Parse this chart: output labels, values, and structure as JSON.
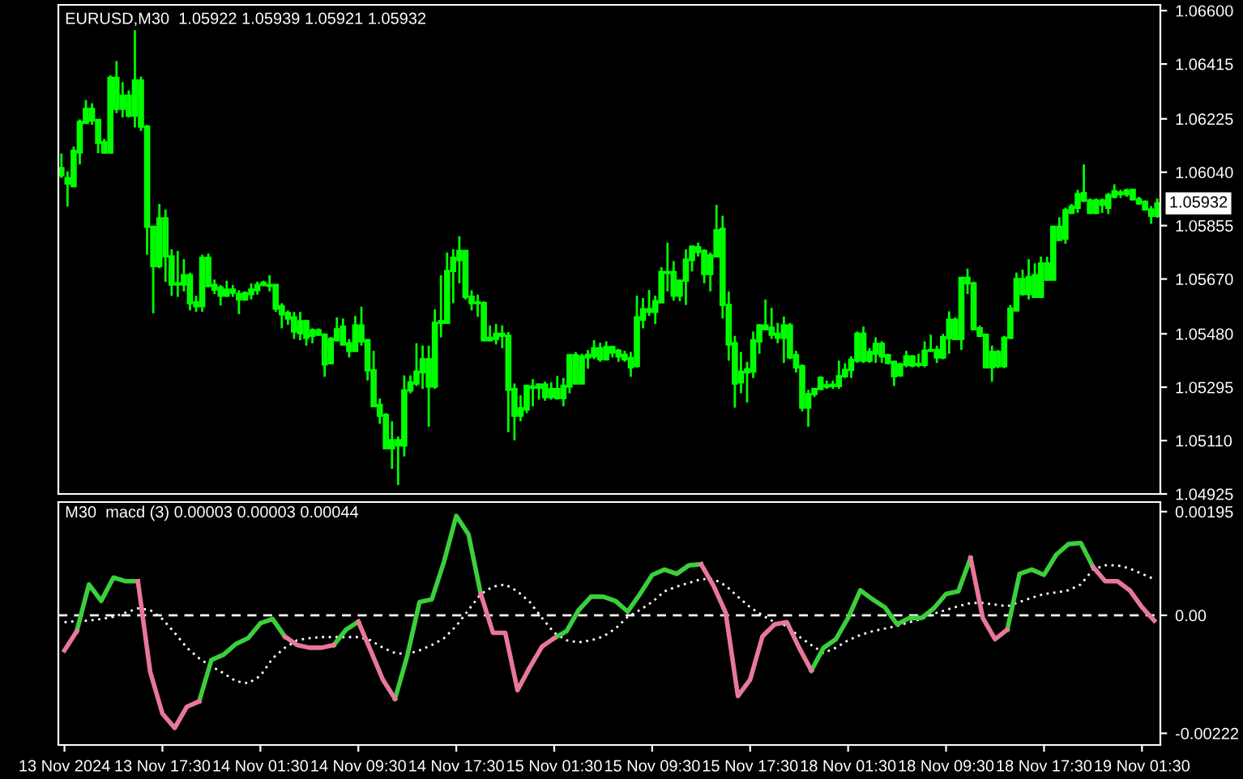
{
  "chart_data": [
    {
      "type": "candlestick",
      "title": "EURUSD,M30  1.05922 1.05939 1.05921 1.05932",
      "color": "#00ff00",
      "tick_labels": "y",
      "categories": [
        null,
        null,
        null,
        null,
        null,
        null,
        null,
        null,
        null,
        null,
        null,
        null,
        null,
        null,
        null,
        null,
        null,
        null,
        null,
        null,
        null,
        null,
        null,
        null,
        null,
        null,
        null,
        null,
        null,
        null,
        null,
        null,
        null,
        null,
        null,
        null,
        null,
        null,
        null,
        null,
        null,
        null,
        null,
        null,
        null,
        null,
        null,
        null,
        null,
        null,
        null,
        null,
        null,
        null,
        null,
        null,
        null,
        null,
        null,
        null,
        null,
        null,
        null,
        null,
        null,
        null,
        null,
        null,
        null,
        null,
        null,
        null,
        null,
        null,
        null,
        null,
        null,
        null,
        null,
        null,
        null,
        null,
        null,
        null,
        null,
        null,
        null,
        null,
        null,
        null,
        null,
        null,
        null,
        null,
        null,
        null,
        null,
        null,
        null,
        null,
        null,
        null,
        null,
        null,
        null,
        null,
        null,
        null,
        null,
        null,
        null,
        null,
        null,
        null,
        null,
        null,
        null,
        null,
        null,
        null,
        null,
        null,
        null,
        null,
        null,
        null,
        null,
        null,
        null,
        null,
        null,
        null,
        null,
        null,
        null,
        null,
        null,
        null,
        null,
        null,
        null,
        null,
        null,
        null,
        null,
        null,
        null,
        null,
        null,
        null,
        null,
        null,
        null,
        null,
        null,
        null,
        null,
        null,
        null,
        null,
        null,
        null,
        null,
        null,
        null,
        null,
        null,
        null,
        null,
        null,
        null,
        null,
        null,
        null,
        null,
        null,
        null,
        null,
        null,
        null
      ],
      "ohlc": [
        [
          1.0603,
          1.06105,
          1.0602,
          1.06054
        ],
        [
          1.0602,
          1.06043,
          1.05921,
          1.06001
        ],
        [
          1.05992,
          1.06129,
          1.05988,
          1.06114
        ],
        [
          1.06108,
          1.06223,
          1.06067,
          1.06215
        ],
        [
          1.06211,
          1.0629,
          1.06208,
          1.0626
        ],
        [
          1.0626,
          1.06279,
          1.06204,
          1.06219
        ],
        [
          1.06221,
          1.06223,
          1.06106,
          1.06142
        ],
        [
          1.06144,
          1.06155,
          1.06105,
          1.06108
        ],
        [
          1.06108,
          1.06376,
          1.06105,
          1.06367
        ],
        [
          1.06367,
          1.06425,
          1.06245,
          1.0626
        ],
        [
          1.0626,
          1.06352,
          1.0623,
          1.06305
        ],
        [
          1.06305,
          1.06324,
          1.0623,
          1.06236
        ],
        [
          1.06236,
          1.06532,
          1.06195,
          1.06358
        ],
        [
          1.06358,
          1.06371,
          1.06183,
          1.06198
        ],
        [
          1.06198,
          1.06204,
          1.05754,
          1.05851
        ],
        [
          1.05851,
          1.05851,
          1.05551,
          1.05715
        ],
        [
          1.05715,
          1.0593,
          1.05707,
          1.0588
        ],
        [
          1.0588,
          1.05911,
          1.0566,
          1.05748
        ],
        [
          1.05748,
          1.05773,
          1.05612,
          1.05651
        ],
        [
          1.05651,
          1.05767,
          1.05608,
          1.05655
        ],
        [
          1.05651,
          1.05739,
          1.05627,
          1.05683
        ],
        [
          1.05683,
          1.05692,
          1.05561,
          1.05586
        ],
        [
          1.05589,
          1.05612,
          1.05556,
          1.05576
        ],
        [
          1.05576,
          1.05754,
          1.05556,
          1.05743
        ],
        [
          1.05743,
          1.05758,
          1.05642,
          1.05646
        ],
        [
          1.05649,
          1.05668,
          1.05618,
          1.05633
        ],
        [
          1.0564,
          1.05649,
          1.05578,
          1.05612
        ],
        [
          1.05612,
          1.05664,
          1.05608,
          1.05633
        ],
        [
          1.05633,
          1.05649,
          1.05608,
          1.05623
        ],
        [
          1.05618,
          1.05631,
          1.05548,
          1.05599
        ],
        [
          1.05599,
          1.05627,
          1.05595,
          1.05621
        ],
        [
          1.05618,
          1.05655,
          1.05599,
          1.05633
        ],
        [
          1.05631,
          1.05661,
          1.05616,
          1.05649
        ],
        [
          1.05649,
          1.05664,
          1.05646,
          1.05657
        ],
        [
          1.05649,
          1.05683,
          1.05627,
          1.05646
        ],
        [
          1.05649,
          1.05649,
          1.05556,
          1.05567
        ],
        [
          1.05576,
          1.05586,
          1.05499,
          1.05548
        ],
        [
          1.05552,
          1.05561,
          1.05511,
          1.05533
        ],
        [
          1.05537,
          1.05556,
          1.05462,
          1.05488
        ],
        [
          1.05482,
          1.05556,
          1.05458,
          1.05524
        ],
        [
          1.05524,
          1.05529,
          1.05439,
          1.05466
        ],
        [
          1.05473,
          1.05499,
          1.05447,
          1.05492
        ],
        [
          1.05492,
          1.05499,
          1.05473,
          1.05477
        ],
        [
          1.05477,
          1.05482,
          1.05331,
          1.05374
        ],
        [
          1.05378,
          1.05469,
          1.05378,
          1.05462
        ],
        [
          1.05458,
          1.05537,
          1.05454,
          1.05496
        ],
        [
          1.05443,
          1.05533,
          1.05439,
          1.05505
        ],
        [
          1.05447,
          1.05462,
          1.05398,
          1.05421
        ],
        [
          1.05421,
          1.05542,
          1.05421,
          1.05509
        ],
        [
          1.05509,
          1.05574,
          1.05439,
          1.05454
        ],
        [
          1.05458,
          1.05462,
          1.05318,
          1.05353
        ],
        [
          1.05353,
          1.05421,
          1.05229,
          1.05229
        ],
        [
          1.05233,
          1.05256,
          1.05168,
          1.05196
        ],
        [
          1.05199,
          1.05205,
          1.05083,
          1.05083
        ],
        [
          1.05083,
          1.05177,
          1.05012,
          1.05111
        ],
        [
          1.05093,
          1.05124,
          1.04956,
          1.05111
        ],
        [
          1.05093,
          1.05336,
          1.05055,
          1.05284
        ],
        [
          1.05284,
          1.05336,
          1.05274,
          1.05312
        ],
        [
          1.05308,
          1.05447,
          1.05299,
          1.05349
        ],
        [
          1.05346,
          1.05439,
          1.05289,
          1.05392
        ],
        [
          1.05392,
          1.05439,
          1.05158,
          1.05297
        ],
        [
          1.05297,
          1.05565,
          1.05289,
          1.05518
        ],
        [
          1.05518,
          1.05683,
          1.05468,
          1.05524
        ],
        [
          1.05518,
          1.05762,
          1.05518,
          1.05698
        ],
        [
          1.05698,
          1.05773,
          1.05586,
          1.05743
        ],
        [
          1.05736,
          1.05818,
          1.05655,
          1.05767
        ],
        [
          1.05767,
          1.05767,
          1.05599,
          1.05608
        ],
        [
          1.05608,
          1.05631,
          1.05561,
          1.05586
        ],
        [
          1.05586,
          1.05616,
          1.05539,
          1.05589
        ],
        [
          1.05586,
          1.05593,
          1.05454,
          1.05458
        ],
        [
          1.05458,
          1.05509,
          1.05454,
          1.05466
        ],
        [
          1.05462,
          1.05514,
          1.05443,
          1.0548
        ],
        [
          1.0548,
          1.05509,
          1.0543,
          1.05473
        ],
        [
          1.05473,
          1.05486,
          1.05139,
          1.05286
        ],
        [
          1.05289,
          1.05308,
          1.05111,
          1.05196
        ],
        [
          1.05196,
          1.05267,
          1.05177,
          1.05222
        ],
        [
          1.05218,
          1.05304,
          1.05205,
          1.05299
        ],
        [
          1.05293,
          1.05323,
          1.05229,
          1.05297
        ],
        [
          1.05293,
          1.05308,
          1.05252,
          1.05304
        ],
        [
          1.05304,
          1.05314,
          1.05248,
          1.05261
        ],
        [
          1.05261,
          1.05312,
          1.05252,
          1.05289
        ],
        [
          1.05289,
          1.05334,
          1.05252,
          1.05257
        ],
        [
          1.05257,
          1.05327,
          1.05229,
          1.053
        ],
        [
          1.05297,
          1.05409,
          1.05274,
          1.05406
        ],
        [
          1.05406,
          1.05417,
          1.05304,
          1.05308
        ],
        [
          1.05308,
          1.05411,
          1.05304,
          1.05402
        ],
        [
          1.05398,
          1.05424,
          1.05359,
          1.05407
        ],
        [
          1.05402,
          1.05458,
          1.05392,
          1.0543
        ],
        [
          1.0543,
          1.05449,
          1.05383,
          1.05392
        ],
        [
          1.05392,
          1.05454,
          1.05387,
          1.05434
        ],
        [
          1.05434,
          1.05439,
          1.05398,
          1.05415
        ],
        [
          1.05421,
          1.05428,
          1.05383,
          1.05402
        ],
        [
          1.05407,
          1.05421,
          1.05383,
          1.05392
        ],
        [
          1.05396,
          1.05417,
          1.05331,
          1.05364
        ],
        [
          1.05368,
          1.05612,
          1.05364,
          1.05537
        ],
        [
          1.05529,
          1.05604,
          1.05499,
          1.05565
        ],
        [
          1.05565,
          1.05632,
          1.05542,
          1.05556
        ],
        [
          1.05556,
          1.05612,
          1.05514,
          1.05593
        ],
        [
          1.05589,
          1.05711,
          1.05589,
          1.05694
        ],
        [
          1.05691,
          1.05796,
          1.05627,
          1.05694
        ],
        [
          1.05694,
          1.05732,
          1.05595,
          1.05612
        ],
        [
          1.05612,
          1.05668,
          1.05593,
          1.05664
        ],
        [
          1.05664,
          1.05773,
          1.0558,
          1.05737
        ],
        [
          1.05736,
          1.05786,
          1.05696,
          1.05782
        ],
        [
          1.0578,
          1.05796,
          1.05748,
          1.05764
        ],
        [
          1.05767,
          1.05773,
          1.05655,
          1.05687
        ],
        [
          1.05687,
          1.05762,
          1.05627,
          1.05752
        ],
        [
          1.05748,
          1.05927,
          1.05748,
          1.05839
        ],
        [
          1.05844,
          1.05889,
          1.05533,
          1.0558
        ],
        [
          1.0558,
          1.05627,
          1.05387,
          1.05443
        ],
        [
          1.05447,
          1.05473,
          1.05224,
          1.05308
        ],
        [
          1.05312,
          1.05417,
          1.05274,
          1.05349
        ],
        [
          1.05346,
          1.05383,
          1.05242,
          1.05357
        ],
        [
          1.05349,
          1.05488,
          1.05327,
          1.05458
        ],
        [
          1.05454,
          1.05514,
          1.05411,
          1.05509
        ],
        [
          1.05509,
          1.05599,
          1.05492,
          1.05496
        ],
        [
          1.05501,
          1.0557,
          1.05462,
          1.05477
        ],
        [
          1.0548,
          1.05518,
          1.05447,
          1.05466
        ],
        [
          1.05466,
          1.0554,
          1.05379,
          1.05509
        ],
        [
          1.05509,
          1.05518,
          1.05392,
          1.05398
        ],
        [
          1.05406,
          1.05421,
          1.05346,
          1.05364
        ],
        [
          1.05368,
          1.05374,
          1.05211,
          1.05224
        ],
        [
          1.05224,
          1.05286,
          1.05158,
          1.05271
        ],
        [
          1.05271,
          1.05293,
          1.05261,
          1.05289
        ],
        [
          1.05289,
          1.05333,
          1.05286,
          1.05327
        ],
        [
          1.05297,
          1.05318,
          1.05289,
          1.05302
        ],
        [
          1.05299,
          1.05318,
          1.05289,
          1.05304
        ],
        [
          1.05299,
          1.05387,
          1.05289,
          1.05333
        ],
        [
          1.05333,
          1.05378,
          1.05327,
          1.05355
        ],
        [
          1.05355,
          1.05402,
          1.05327,
          1.0539
        ],
        [
          1.05387,
          1.05488,
          1.05379,
          1.0548
        ],
        [
          1.0548,
          1.05505,
          1.05379,
          1.05387
        ],
        [
          1.05387,
          1.0543,
          1.05379,
          1.05417
        ],
        [
          1.05411,
          1.05468,
          1.05379,
          1.05445
        ],
        [
          1.05445,
          1.05454,
          1.05379,
          1.05402
        ],
        [
          1.05406,
          1.05411,
          1.05374,
          1.05379
        ],
        [
          1.05383,
          1.05387,
          1.05299,
          1.05333
        ],
        [
          1.05336,
          1.05379,
          1.05331,
          1.05374
        ],
        [
          1.05372,
          1.05421,
          1.05364,
          1.05402
        ],
        [
          1.05402,
          1.05406,
          1.05364,
          1.0537
        ],
        [
          1.05372,
          1.05411,
          1.05364,
          1.05376
        ],
        [
          1.05372,
          1.05454,
          1.05364,
          1.05421
        ],
        [
          1.05421,
          1.05477,
          1.05417,
          1.05424
        ],
        [
          1.05424,
          1.05439,
          1.05379,
          1.05398
        ],
        [
          1.05398,
          1.0548,
          1.05392,
          1.05468
        ],
        [
          1.05464,
          1.05558,
          1.05411,
          1.05529
        ],
        [
          1.05529,
          1.05537,
          1.05458,
          1.05462
        ],
        [
          1.05462,
          1.05674,
          1.05424,
          1.05674
        ],
        [
          1.05674,
          1.05706,
          1.05618,
          1.05655
        ],
        [
          1.05655,
          1.05661,
          1.05492,
          1.05496
        ],
        [
          1.05499,
          1.05509,
          1.05468,
          1.05473
        ],
        [
          1.05477,
          1.0548,
          1.05361,
          1.05364
        ],
        [
          1.05364,
          1.05439,
          1.05314,
          1.05417
        ],
        [
          1.05417,
          1.05424,
          1.05361,
          1.05368
        ],
        [
          1.05368,
          1.05473,
          1.05361,
          1.05466
        ],
        [
          1.05466,
          1.0558,
          1.05462,
          1.05567
        ],
        [
          1.05561,
          1.05692,
          1.05558,
          1.0567
        ],
        [
          1.0567,
          1.05702,
          1.05612,
          1.05618
        ],
        [
          1.05618,
          1.05739,
          1.05599,
          1.05677
        ],
        [
          1.05683,
          1.05724,
          1.05604,
          1.05608
        ],
        [
          1.05608,
          1.05748,
          1.05604,
          1.05724
        ],
        [
          1.05724,
          1.05747,
          1.05664,
          1.05668
        ],
        [
          1.05668,
          1.05855,
          1.05664,
          1.05851
        ],
        [
          1.05851,
          1.05884,
          1.05805,
          1.05805
        ],
        [
          1.0581,
          1.05917,
          1.05792,
          1.05908
        ],
        [
          1.05899,
          1.0593,
          1.05895,
          1.05921
        ],
        [
          1.05917,
          1.05979,
          1.05899,
          1.05964
        ],
        [
          1.05968,
          1.06067,
          1.05936,
          1.05942
        ],
        [
          1.05942,
          1.05949,
          1.05895,
          1.05899
        ],
        [
          1.05899,
          1.05949,
          1.05895,
          1.05942
        ],
        [
          1.05942,
          1.05949,
          1.05899,
          1.05927
        ],
        [
          1.05917,
          1.05968,
          1.05895,
          1.05961
        ],
        [
          1.05955,
          1.05998,
          1.05949,
          1.05974
        ],
        [
          1.0597,
          1.05979,
          1.05951,
          1.05964
        ],
        [
          1.05964,
          1.05983,
          1.05955,
          1.05977
        ],
        [
          1.05979,
          1.05983,
          1.05942,
          1.05946
        ],
        [
          1.05946,
          1.05955,
          1.05927,
          1.05932
        ],
        [
          1.05938,
          1.05942,
          1.05908,
          1.05911
        ],
        [
          1.05911,
          1.05923,
          1.05861,
          1.05889
        ],
        [
          1.05889,
          1.05949,
          1.05882,
          1.05932
        ]
      ],
      "ylim": [
        1.04925,
        1.0662
      ],
      "yticks": [
        {
          "value": 1.066,
          "label": "1.06600"
        },
        {
          "value": 1.06415,
          "label": "1.06415"
        },
        {
          "value": 1.06225,
          "label": "1.06225"
        },
        {
          "value": 1.0604,
          "label": "1.06040"
        },
        {
          "value": 1.05855,
          "label": "1.05855"
        },
        {
          "value": 1.0567,
          "label": "1.05670"
        },
        {
          "value": 1.0548,
          "label": "1.05480"
        },
        {
          "value": 1.05295,
          "label": "1.05295"
        },
        {
          "value": 1.0511,
          "label": "1.05110"
        },
        {
          "value": 1.04925,
          "label": "1.04925"
        }
      ],
      "annotations": [
        "1.05932"
      ]
    },
    {
      "type": "line",
      "title": "M30  macd (3) 0.00003 0.00003 0.00044",
      "categories": [
        "13 Nov 2024",
        null,
        null,
        null,
        null,
        null,
        null,
        null,
        "13 Nov 17:30",
        null,
        null,
        null,
        null,
        null,
        null,
        null,
        "14 Nov 01:30",
        null,
        null,
        null,
        null,
        null,
        null,
        null,
        "14 Nov 09:30",
        null,
        null,
        null,
        null,
        null,
        null,
        null,
        "14 Nov 17:30",
        null,
        null,
        null,
        null,
        null,
        null,
        null,
        "15 Nov 01:30",
        null,
        null,
        null,
        null,
        null,
        null,
        null,
        "15 Nov 09:30",
        null,
        null,
        null,
        null,
        null,
        null,
        null,
        "15 Nov 17:30",
        null,
        null,
        null,
        null,
        null,
        null,
        null,
        "18 Nov 01:30",
        null,
        null,
        null,
        null,
        null,
        null,
        null,
        "18 Nov 09:30",
        null,
        null,
        null,
        null,
        null,
        null,
        null,
        "18 Nov 17:30",
        null,
        null,
        null,
        null,
        null,
        null,
        null,
        "19 Nov 01:30",
        null
      ],
      "series": [
        {
          "color": "#3ccf3c",
          "values": [
            null,
            -0.0003,
            0.00058,
            0.00027,
            0.00071,
            0.00064,
            0.00064,
            null,
            null,
            null,
            null,
            -0.00162,
            -0.00084,
            -0.00074,
            -0.00054,
            -0.00043,
            -0.00015,
            -7e-05,
            -0.0004,
            null,
            null,
            null,
            -0.00056,
            -0.00027,
            -0.00012,
            null,
            null,
            -0.00157,
            -0.00076,
            0.00025,
            0.0003,
            0.00101,
            0.00187,
            0.00152,
            0.0004,
            null,
            null,
            null,
            null,
            null,
            -0.00043,
            -0.0003,
            0.0001,
            0.00035,
            0.00035,
            0.00027,
            7e-05,
            0.0004,
            0.00076,
            0.00086,
            0.00078,
            0.00094,
            0.00096,
            null,
            null,
            null,
            null,
            null,
            null,
            null,
            null,
            -0.00104,
            -0.00061,
            -0.00045,
            -5e-05,
            0.00047,
            0.0003,
            0.00015,
            -0.00017,
            -5e-05,
            -5e-05,
            0.00013,
            0.0004,
            0.00045,
            0.00108,
            null,
            null,
            -0.00027,
            0.00078,
            0.00086,
            0.00076,
            0.00114,
            0.00134,
            0.00136,
            0.00091,
            null,
            null,
            null,
            null,
            null
          ]
        },
        {
          "color": "#e8789a",
          "values": [
            -0.00066,
            -0.0003,
            null,
            null,
            null,
            null,
            0.00064,
            -0.00106,
            -0.00185,
            -0.00212,
            -0.00172,
            -0.00162,
            null,
            null,
            null,
            null,
            null,
            null,
            -0.0004,
            -0.00056,
            -0.00061,
            -0.00061,
            -0.00056,
            null,
            -0.00012,
            -0.00066,
            -0.00121,
            -0.00157,
            null,
            null,
            null,
            null,
            null,
            null,
            0.0004,
            -0.00033,
            -0.00033,
            -0.00141,
            -0.00098,
            -0.00059,
            -0.00043,
            null,
            null,
            null,
            null,
            null,
            null,
            null,
            null,
            null,
            null,
            null,
            0.00096,
            0.00056,
            5e-05,
            -0.00152,
            -0.00121,
            -0.0004,
            -0.00017,
            -0.00013,
            -0.00061,
            -0.00104,
            null,
            null,
            null,
            null,
            null,
            null,
            null,
            null,
            null,
            null,
            null,
            null,
            0.00108,
            -5e-05,
            -0.00045,
            -0.00027,
            null,
            null,
            null,
            null,
            null,
            null,
            0.00091,
            0.00064,
            0.00064,
            0.00047,
            0.00015,
            -0.0001
          ]
        },
        {
          "color": "#ffffff",
          "line_style": "dotted",
          "values": [
            -0.00013,
            -0.00011,
            -0.0001,
            -7e-05,
            -3e-05,
            5e-05,
            0.00013,
            0.0001,
            -7e-05,
            -0.00033,
            -0.00061,
            -0.00081,
            -0.00096,
            -0.00109,
            -0.00124,
            -0.00128,
            -0.00114,
            -0.00081,
            -0.00061,
            -0.00047,
            -0.00043,
            -0.00041,
            -0.00041,
            -0.00041,
            -0.00041,
            -0.00047,
            -0.00061,
            -0.00071,
            -0.00073,
            -0.00066,
            -0.00056,
            -0.00043,
            -0.0002,
            0.0001,
            0.0004,
            0.00054,
            0.00058,
            0.00045,
            0.00025,
            -5e-05,
            -0.00033,
            -0.00047,
            -0.00051,
            -0.00047,
            -0.0004,
            -0.00025,
            -3e-05,
            0.0001,
            0.00025,
            0.00045,
            0.00054,
            0.00061,
            0.00068,
            0.00068,
            0.00056,
            0.00035,
            0.00015,
            0.0,
            -0.00013,
            -0.0002,
            -0.0004,
            -0.00056,
            -0.00071,
            -0.00061,
            -0.00047,
            -0.00037,
            -0.0003,
            -0.00025,
            -0.0002,
            -0.00013,
            -7e-05,
            3e-05,
            0.0001,
            0.00017,
            0.00023,
            0.00023,
            0.0002,
            0.00017,
            0.00025,
            0.00033,
            0.0004,
            0.00043,
            0.00047,
            0.00058,
            0.00086,
            0.00094,
            0.00094,
            0.00088,
            0.00078,
            0.00068
          ]
        }
      ],
      "ylim": [
        -0.00244,
        0.00213
      ],
      "yticks": [
        {
          "value": 0.00195,
          "label": "0.00195"
        },
        {
          "value": 0,
          "label": "0.00"
        },
        {
          "value": -0.00222,
          "label": "-0.00222"
        }
      ],
      "ref_lines": [
        {
          "axis": "y",
          "value": 0,
          "color": "#ffffff",
          "line_style": "dashed"
        }
      ]
    }
  ]
}
